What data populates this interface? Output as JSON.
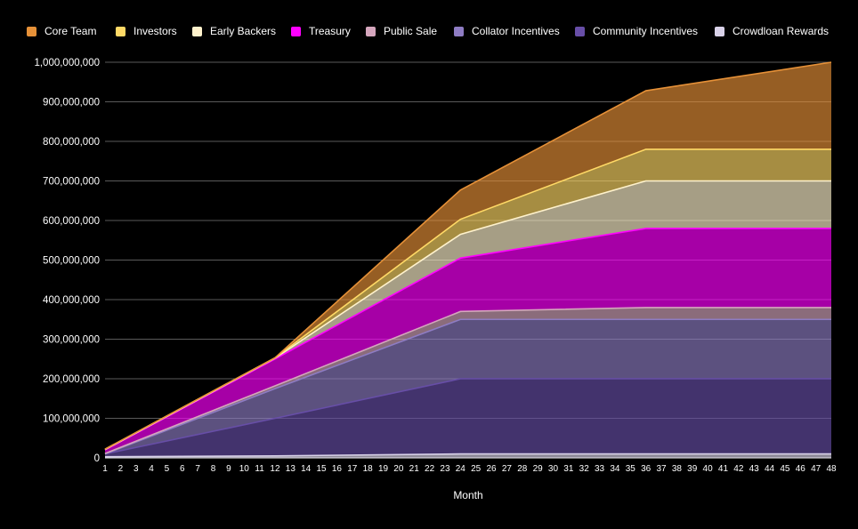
{
  "chart_data": {
    "type": "area",
    "stacked": true,
    "xlabel": "Month",
    "ylabel": "",
    "ylim": [
      0,
      1000000000
    ],
    "yticks": [
      0,
      100000000,
      200000000,
      300000000,
      400000000,
      500000000,
      600000000,
      700000000,
      800000000,
      900000000,
      1000000000
    ],
    "ytick_labels": [
      "0",
      "100,000,000",
      "200,000,000",
      "300,000,000",
      "400,000,000",
      "500,000,000",
      "600,000,000",
      "700,000,000",
      "800,000,000",
      "900,000,000",
      "1,000,000,000"
    ],
    "x_breakpoints": [
      1,
      12,
      24,
      36,
      48
    ],
    "x_range": [
      1,
      48
    ],
    "grid": true,
    "legend_position": "top",
    "series": [
      {
        "name": "Crowdloan Rewards",
        "color": "#d9d2e9",
        "cumulative_totals": [
          3000000,
          5000000,
          10000000,
          10000000,
          10000000
        ]
      },
      {
        "name": "Community Incentives",
        "color": "#674ea7",
        "cumulative_totals": [
          10000000,
          100000000,
          200000000,
          200000000,
          200000000
        ]
      },
      {
        "name": "Collator Incentives",
        "color": "#8e7cc3",
        "cumulative_totals": [
          10000000,
          175000000,
          350000000,
          350000000,
          350000000
        ]
      },
      {
        "name": "Public Sale",
        "color": "#d5a6bd",
        "cumulative_totals": [
          11000000,
          182000000,
          370000000,
          380000000,
          380000000
        ]
      },
      {
        "name": "Treasury",
        "color": "#ff00ff",
        "cumulative_totals": [
          20000000,
          250000000,
          505000000,
          580000000,
          580000000
        ]
      },
      {
        "name": "Early Backers",
        "color": "#fff2cc",
        "cumulative_totals": [
          21000000,
          252000000,
          565000000,
          700000000,
          700000000
        ]
      },
      {
        "name": "Investors",
        "color": "#ffd966",
        "cumulative_totals": [
          22000000,
          253000000,
          603000000,
          780000000,
          780000000
        ]
      },
      {
        "name": "Core Team",
        "color": "#e69138",
        "cumulative_totals": [
          22000000,
          253000000,
          677000000,
          928000000,
          1000000000
        ]
      }
    ],
    "legend_order": [
      "Core Team",
      "Investors",
      "Early Backers",
      "Treasury",
      "Public Sale",
      "Collator Incentives",
      "Community Incentives",
      "Crowdloan Rewards"
    ]
  }
}
